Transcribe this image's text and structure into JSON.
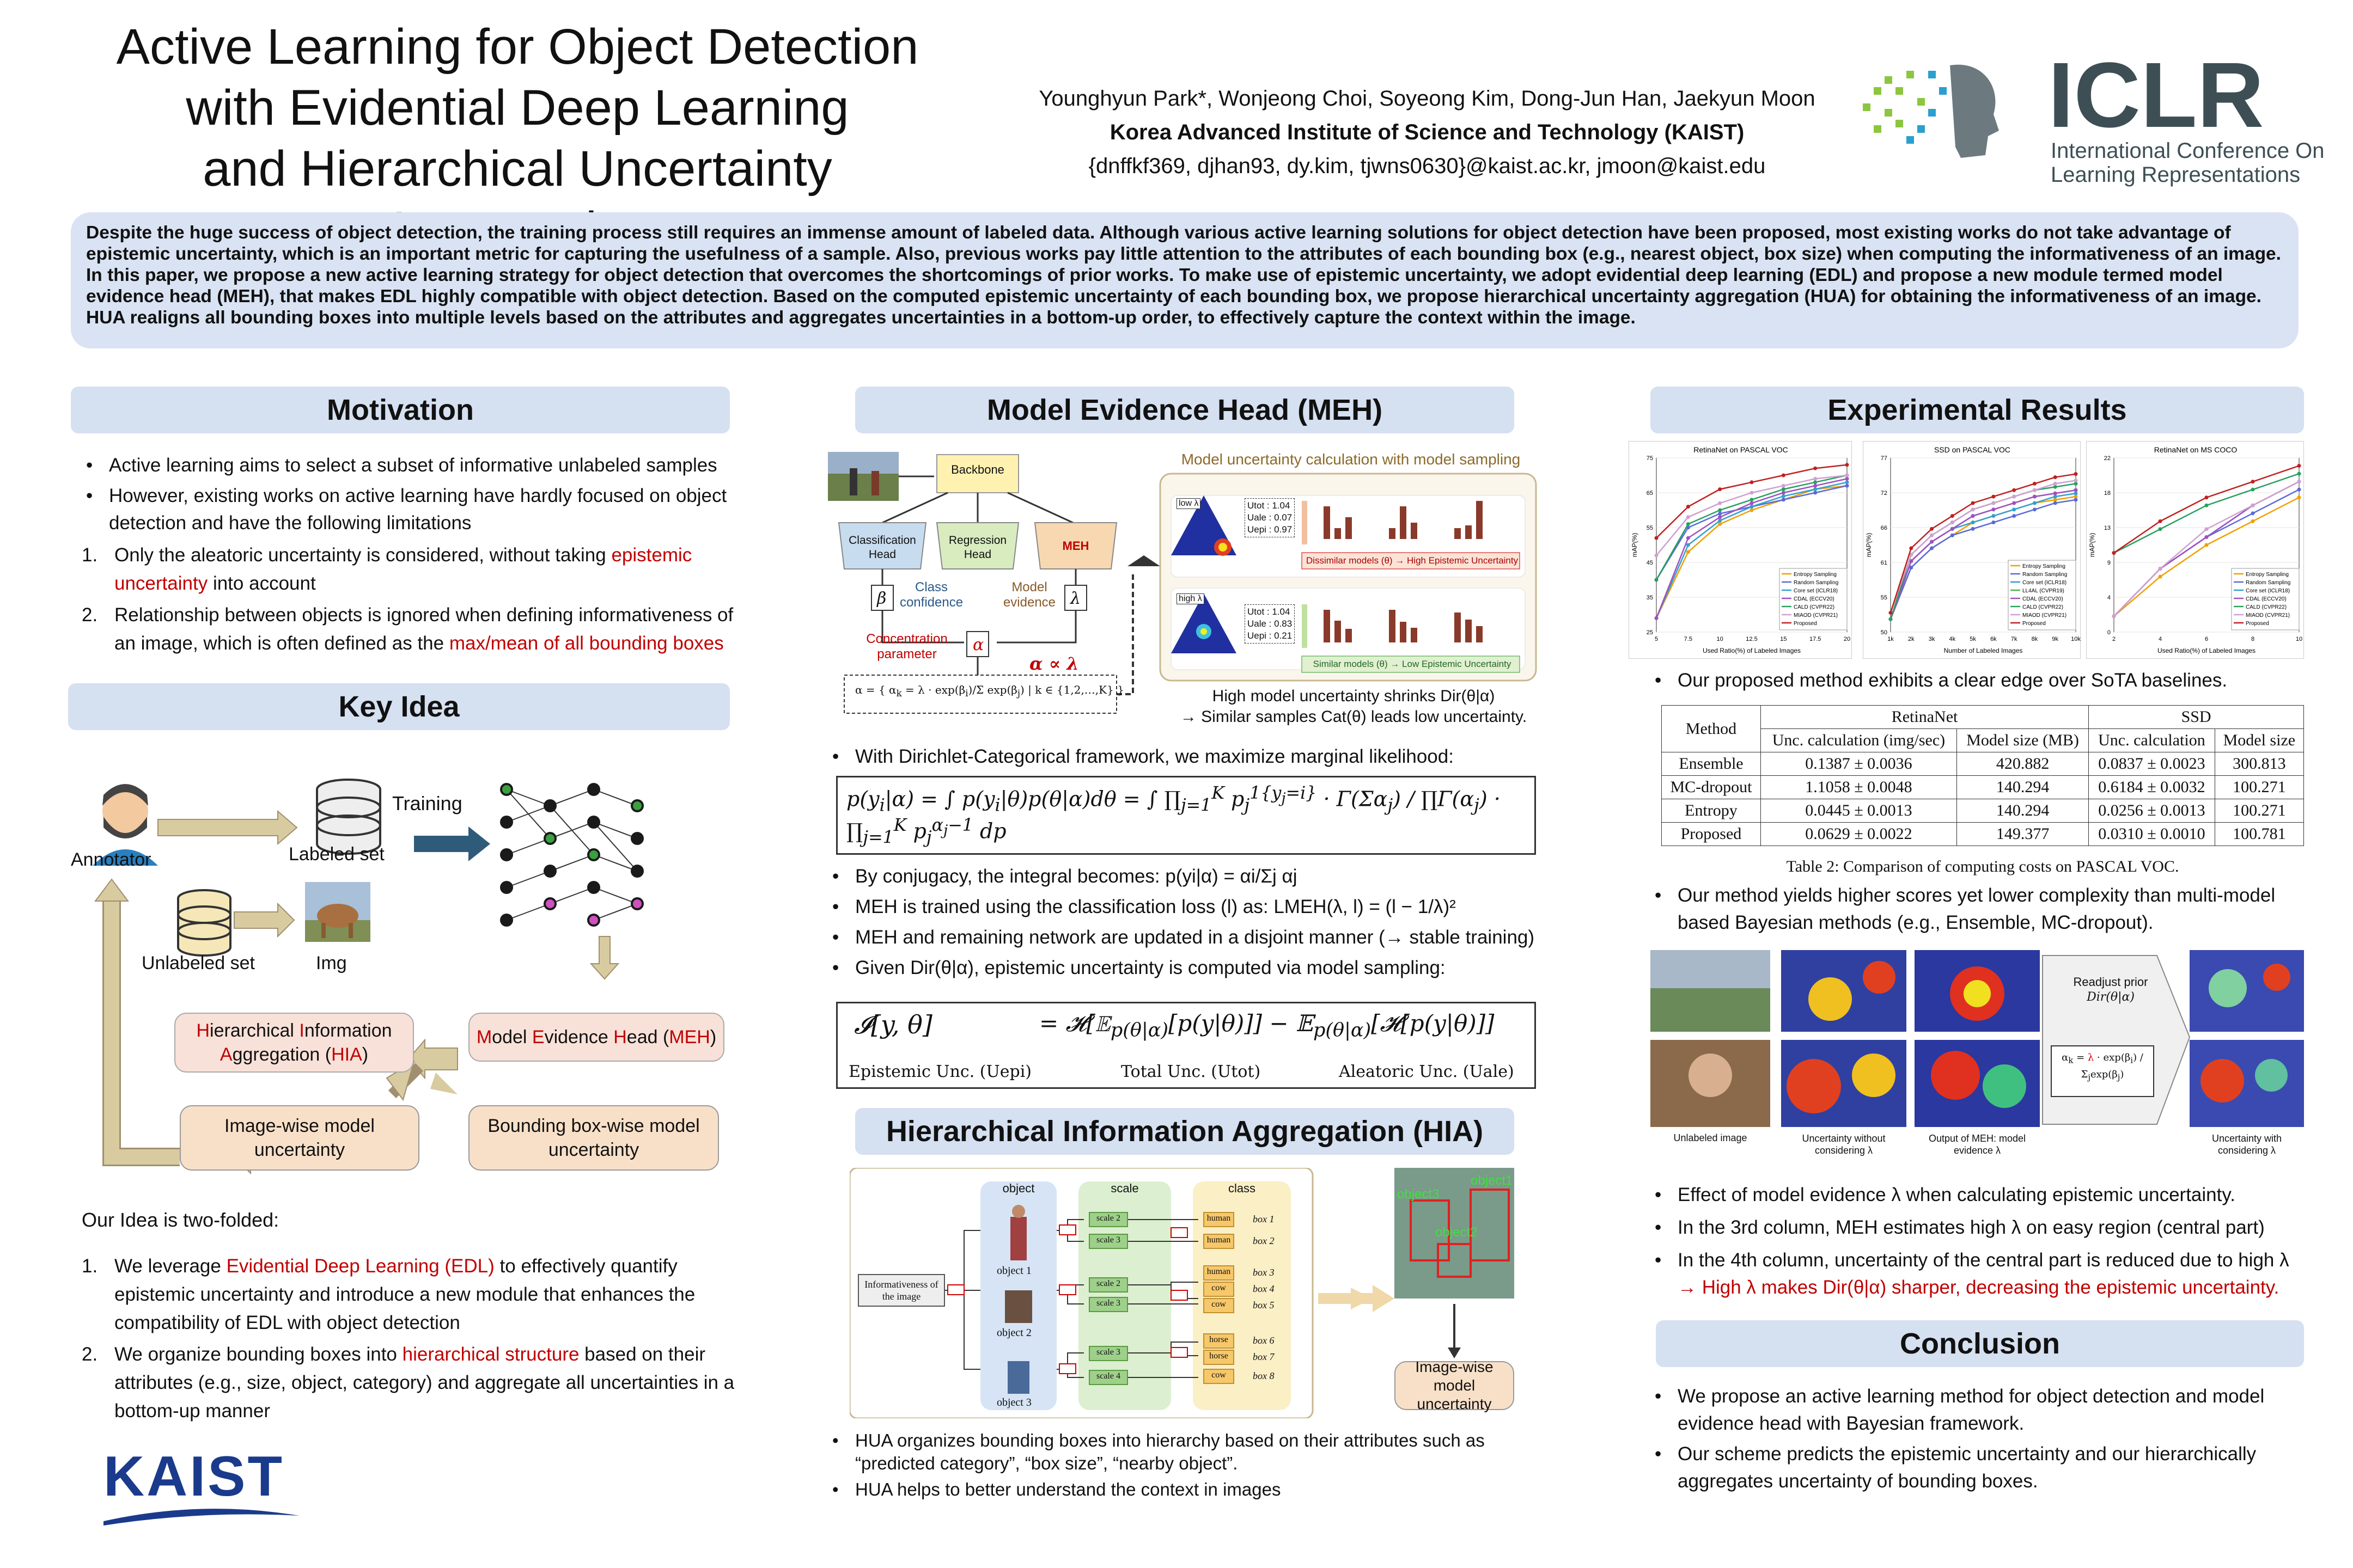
{
  "header": {
    "title_lines": [
      "Active Learning for Object Detection",
      "with Evidential Deep Learning",
      "and Hierarchical Uncertainty Aggregation"
    ],
    "authors": "Younghyun Park*, Wonjeong Choi, Soyeong Kim, Dong-Jun Han, Jaekyun Moon",
    "institution": "Korea Advanced Institute of Science and Technology (KAIST)",
    "emails": "{dnffkf369, djhan93, dy.kim, tjwns0630}@kaist.ac.kr, jmoon@kaist.edu",
    "iclr_logo": "ICLR",
    "iclr_sub1": "International Conference On",
    "iclr_sub2": "Learning Representations",
    "kaist_logo": "KAIST"
  },
  "abstract": "Despite the huge success of object detection, the training process still requires an immense amount of labeled data. Although various active learning solutions for object detection have been proposed, most existing works do not take advantage of epistemic uncertainty, which is an important metric for capturing the usefulness of a sample. Also, previous works pay little attention to the attributes of each bounding box (e.g., nearest object, box size) when computing the informativeness of an image. In this paper, we propose a new active learning strategy for object detection that overcomes the shortcomings of prior works. To make use of epistemic uncertainty, we adopt evidential deep learning (EDL) and propose a new module termed model evidence head (MEH), that makes EDL highly compatible with object detection. Based on the computed epistemic uncertainty of each bounding box, we propose hierarchical uncertainty aggregation (HUA) for obtaining the informativeness of an image. HUA realigns all bounding boxes into multiple levels based on the attributes and aggregates uncertainties in a bottom-up order, to effectively capture the context within the image.",
  "motivation": {
    "heading": "Motivation",
    "bullets": [
      "Active learning aims to select a subset of informative unlabeled samples",
      "However, existing works on active learning have hardly focused on object detection and have the following limitations"
    ],
    "items": [
      {
        "n": "1.",
        "text": "Only the aleatoric uncertainty is considered, without taking ",
        "red": "epistemic uncertainty",
        "after": " into account"
      },
      {
        "n": "2.",
        "text": "Relationship between objects is ignored when defining informativeness of an image, which is often defined as the ",
        "red": "max/mean of all bounding boxes",
        "after": ""
      }
    ]
  },
  "keyidea": {
    "heading": "Key Idea",
    "annotator": "Annotator",
    "labeled": "Labeled set",
    "training": "Training",
    "unlabeled": "Unlabeled set",
    "img": "Img",
    "hia_box": "Hierarchical Information Aggregation (HIA)",
    "meh_box": "Model Evidence Head (MEH)",
    "image_unc": "Image-wise model uncertainty",
    "bbox_unc": "Bounding box-wise model uncertainty",
    "intro": "Our Idea is two-folded:",
    "items": [
      {
        "n": "1.",
        "pre": "We leverage ",
        "red": "Evidential Deep Learning (EDL)",
        "post": " to effectively quantify epistemic uncertainty and introduce a new module that enhances the compatibility of EDL with object detection"
      },
      {
        "n": "2.",
        "pre": "We organize bounding boxes into ",
        "red": "hierarchical structure",
        "post": " based on their attributes (e.g., size, object, category) and aggregate all uncertainties in a bottom-up manner"
      }
    ]
  },
  "meh": {
    "heading": "Model Evidence Head (MEH)",
    "backbone": "Backbone",
    "cls_head": "Classification Head",
    "reg_head": "Regression Head",
    "meh_label": "MEH",
    "class_conf": "Class confidence",
    "model_evid": "Model evidence",
    "conc": "Concentration parameter",
    "alpha_prop": "α ∝ λ",
    "sampling_title": "Model uncertainty calculation with model sampling",
    "low_lambda": "low λ",
    "high_lambda": "high λ",
    "fixed_beta": "fixed β",
    "dissimilar": "Dissimilar models (θ) → High Epistemic Uncertainty",
    "similar": "Similar models (θ) → Low Epistemic Uncertainty",
    "unc_top": [
      "Utot : 1.04",
      "Uale : 0.07",
      "Uepi : 0.97"
    ],
    "unc_bot": [
      "Utot : 1.04",
      "Uale : 0.83",
      "Uepi : 0.21"
    ],
    "shrink1": "High model uncertainty shrinks Dir(θ|α)",
    "shrink2": "→ Similar samples Cat(θ) leads low uncertainty.",
    "bullet0": "With Dirichlet-Categorical framework, we maximize marginal likelihood:",
    "bullets": [
      "By conjugacy, the integral becomes: p(yi|α) = αi/Σj αj",
      "MEH is trained using the classification loss (l) as: LMEH(λ, l) = (l − 1/λ)²",
      "MEH and remaining network are updated in a disjoint manner (→ stable training)",
      "Given Dir(θ|α), epistemic uncertainty is computed via model sampling:"
    ],
    "eq_labels": [
      "Epistemic Unc. (Uepi)",
      "Total Unc. (Utot)",
      "Aleatoric Unc. (Uale)"
    ]
  },
  "hia": {
    "heading": "Hierarchical Information Aggregation (HIA)",
    "cols": [
      "object",
      "scale",
      "class"
    ],
    "info": "Informativeness of the image",
    "objects": [
      "object 1",
      "object 2",
      "object 3"
    ],
    "scales": [
      "scale 2",
      "scale 3",
      "scale 2",
      "scale 3",
      "scale 3",
      "scale 4"
    ],
    "classes": [
      "human",
      "human",
      "human",
      "cow",
      "cow",
      "horse",
      "horse",
      "cow"
    ],
    "boxes": [
      "box 1",
      "box 2",
      "box 3",
      "box 4",
      "box 5",
      "box 6",
      "box 7",
      "box 8"
    ],
    "img_unc": "Image-wise model uncertainty",
    "photo_labels": [
      "object3",
      "object2",
      "object1"
    ],
    "bullets": [
      "HUA organizes bounding boxes into hierarchy based on their attributes such as “predicted category”, “box size”, “nearby object”.",
      "HUA helps to better understand the context in images"
    ]
  },
  "results": {
    "heading": "Experimental Results",
    "chart_titles": [
      "RetinaNet on PASCAL VOC",
      "SSD on PASCAL VOC",
      "RetinaNet on MS COCO"
    ],
    "xlabels": [
      "Used Ratio(%) of Labeled Images",
      "Number of Labeled Images",
      "Used Ratio(%) of Labeled Images"
    ],
    "ylabel": "mAP(%)",
    "bullet1": "Our proposed method exhibits a clear edge over SoTA baselines.",
    "table": {
      "h_method": "Method",
      "h_retina": "RetinaNet",
      "h_ssd": "SSD",
      "sub": [
        "Unc. calculation (img/sec)",
        "Model size (MB)",
        "Unc. calculation",
        "Model size"
      ],
      "rows": [
        [
          "Ensemble",
          "0.1387 ± 0.0036",
          "420.882",
          "0.0837 ± 0.0023",
          "300.813"
        ],
        [
          "MC-dropout",
          "1.1058 ± 0.0048",
          "140.294",
          "0.6184 ± 0.0032",
          "100.271"
        ],
        [
          "Entropy",
          "0.0445 ± 0.0013",
          "140.294",
          "0.0256 ± 0.0013",
          "100.271"
        ],
        [
          "Proposed",
          "0.0629 ± 0.0022",
          "149.377",
          "0.0310 ± 0.0010",
          "100.781"
        ]
      ],
      "caption": "Table 2: Comparison of computing costs on PASCAL VOC."
    },
    "bullet2": "Our method yields higher scores yet lower complexity than multi-model based Bayesian methods (e.g., Ensemble, MC-dropout).",
    "fig_labels": [
      "Unlabeled image",
      "Uncertainty without considering λ",
      "Output of MEH: model evidence λ",
      "Uncertainty with considering λ"
    ],
    "readjust": "Readjust prior",
    "readjust2": "Dir(θ|α)",
    "bullets3": [
      {
        "pre": "Effect of model evidence λ when calculating epistemic uncertainty.",
        "red": ""
      },
      {
        "pre": "In the 3rd column, MEH estimates high λ on easy region (central part)",
        "red": ""
      },
      {
        "pre": "In the 4th column, uncertainty of the central part is reduced due to high λ",
        "red": "→  High λ makes Dir(θ|α) sharper, decreasing the epistemic uncertainty."
      }
    ]
  },
  "conclusion": {
    "heading": "Conclusion",
    "bullets": [
      "We propose an active learning method for object detection and model evidence head with Bayesian framework.",
      "Our scheme predicts the epistemic uncertainty and our hierarchically aggregates uncertainty of bounding boxes."
    ]
  },
  "chart_data": [
    {
      "type": "line",
      "title": "RetinaNet on PASCAL VOC",
      "xlabel": "Used Ratio(%) of Labeled Images",
      "ylabel": "mAP(%)",
      "x": [
        5,
        7.5,
        10,
        12.5,
        15,
        17.5,
        20
      ],
      "ylim": [
        25,
        75
      ],
      "series": [
        {
          "name": "Entropy Sampling",
          "color": "#f0a000",
          "values": [
            29,
            48,
            56,
            60,
            63,
            66,
            67
          ]
        },
        {
          "name": "Random Sampling",
          "color": "#5a6ad8",
          "values": [
            40,
            55,
            59,
            61,
            63,
            65,
            67
          ]
        },
        {
          "name": "Core set (ICLR18)",
          "color": "#30a0d0",
          "values": [
            29,
            50,
            57,
            61,
            64,
            66,
            68
          ]
        },
        {
          "name": "CDAL (ECCV20)",
          "color": "#a050c0",
          "values": [
            29,
            52,
            58,
            62,
            65,
            67,
            69
          ]
        },
        {
          "name": "CALD (CVPR22)",
          "color": "#28a060",
          "values": [
            40,
            56,
            60,
            63,
            66,
            68,
            70
          ]
        },
        {
          "name": "MIAOD (CVPR21)",
          "color": "#d0a0d0",
          "values": [
            47,
            58,
            62,
            65,
            67,
            69,
            70
          ]
        },
        {
          "name": "Proposed",
          "color": "#c02020",
          "values": [
            52,
            61,
            66,
            68,
            70,
            72,
            73
          ]
        }
      ]
    },
    {
      "type": "line",
      "title": "SSD on PASCAL VOC",
      "xlabel": "Number of Labeled Images",
      "ylabel": "mAP(%)",
      "x": [
        "1k",
        "2k",
        "3k",
        "4k",
        "5k",
        "6k",
        "7k",
        "8k",
        "9k",
        "10k"
      ],
      "ylim": [
        50,
        77
      ],
      "series": [
        {
          "name": "Entropy Sampling",
          "color": "#f0a000",
          "values": [
            52,
            60,
            63,
            65,
            67,
            68,
            69,
            70,
            70.5,
            71
          ]
        },
        {
          "name": "Random Sampling",
          "color": "#5a6ad8",
          "values": [
            52,
            60,
            63,
            65,
            66,
            67,
            68,
            69,
            70,
            70.5
          ]
        },
        {
          "name": "Core set (ICLR18)",
          "color": "#30a0d0",
          "values": [
            52,
            61,
            64,
            66,
            67,
            68,
            69,
            70,
            71,
            71.5
          ]
        },
        {
          "name": "LL4AL (CVPR19)",
          "color": "#50b050",
          "values": [
            52,
            61,
            64,
            66,
            68,
            69,
            70,
            71,
            71.5,
            72
          ]
        },
        {
          "name": "CDAL (ECCV20)",
          "color": "#a050c0",
          "values": [
            52,
            61,
            64,
            66,
            68,
            69,
            70,
            71,
            71.5,
            72
          ]
        },
        {
          "name": "CALD (CVPR22)",
          "color": "#28a060",
          "values": [
            52,
            62,
            65,
            67,
            69,
            70,
            71,
            72,
            72.5,
            73
          ]
        },
        {
          "name": "MIAOD (CVPR21)",
          "color": "#d0a0d0",
          "values": [
            53,
            62,
            65,
            67,
            69,
            70,
            71,
            72,
            73,
            73.5
          ]
        },
        {
          "name": "Proposed",
          "color": "#c02020",
          "values": [
            53,
            63,
            66,
            68,
            70,
            71,
            72,
            73,
            74,
            74.5
          ]
        }
      ]
    },
    {
      "type": "line",
      "title": "RetinaNet on MS COCO",
      "xlabel": "Used Ratio(%) of Labeled Images",
      "ylabel": "mAP(%)",
      "x": [
        2,
        4,
        6,
        8,
        10
      ],
      "ylim": [
        0,
        22
      ],
      "series": [
        {
          "name": "Entropy Sampling",
          "color": "#f0a000",
          "values": [
            2,
            7,
            11,
            14,
            17
          ]
        },
        {
          "name": "Random Sampling",
          "color": "#5a6ad8",
          "values": [
            2,
            8,
            12,
            15,
            18
          ]
        },
        {
          "name": "Core set (ICLR18)",
          "color": "#30a0d0",
          "values": [
            2,
            8,
            12,
            16,
            19
          ]
        },
        {
          "name": "CDAL (ECCV20)",
          "color": "#a050c0",
          "values": [
            2,
            8,
            12,
            16,
            19
          ]
        },
        {
          "name": "CALD (CVPR22)",
          "color": "#28a060",
          "values": [
            10,
            13,
            16,
            18,
            20
          ]
        },
        {
          "name": "MIAOD (CVPR21)",
          "color": "#d0a0d0",
          "values": [
            2,
            8,
            13,
            16,
            19
          ]
        },
        {
          "name": "Proposed",
          "color": "#c02020",
          "values": [
            10,
            14,
            17,
            19,
            21
          ]
        }
      ]
    }
  ]
}
